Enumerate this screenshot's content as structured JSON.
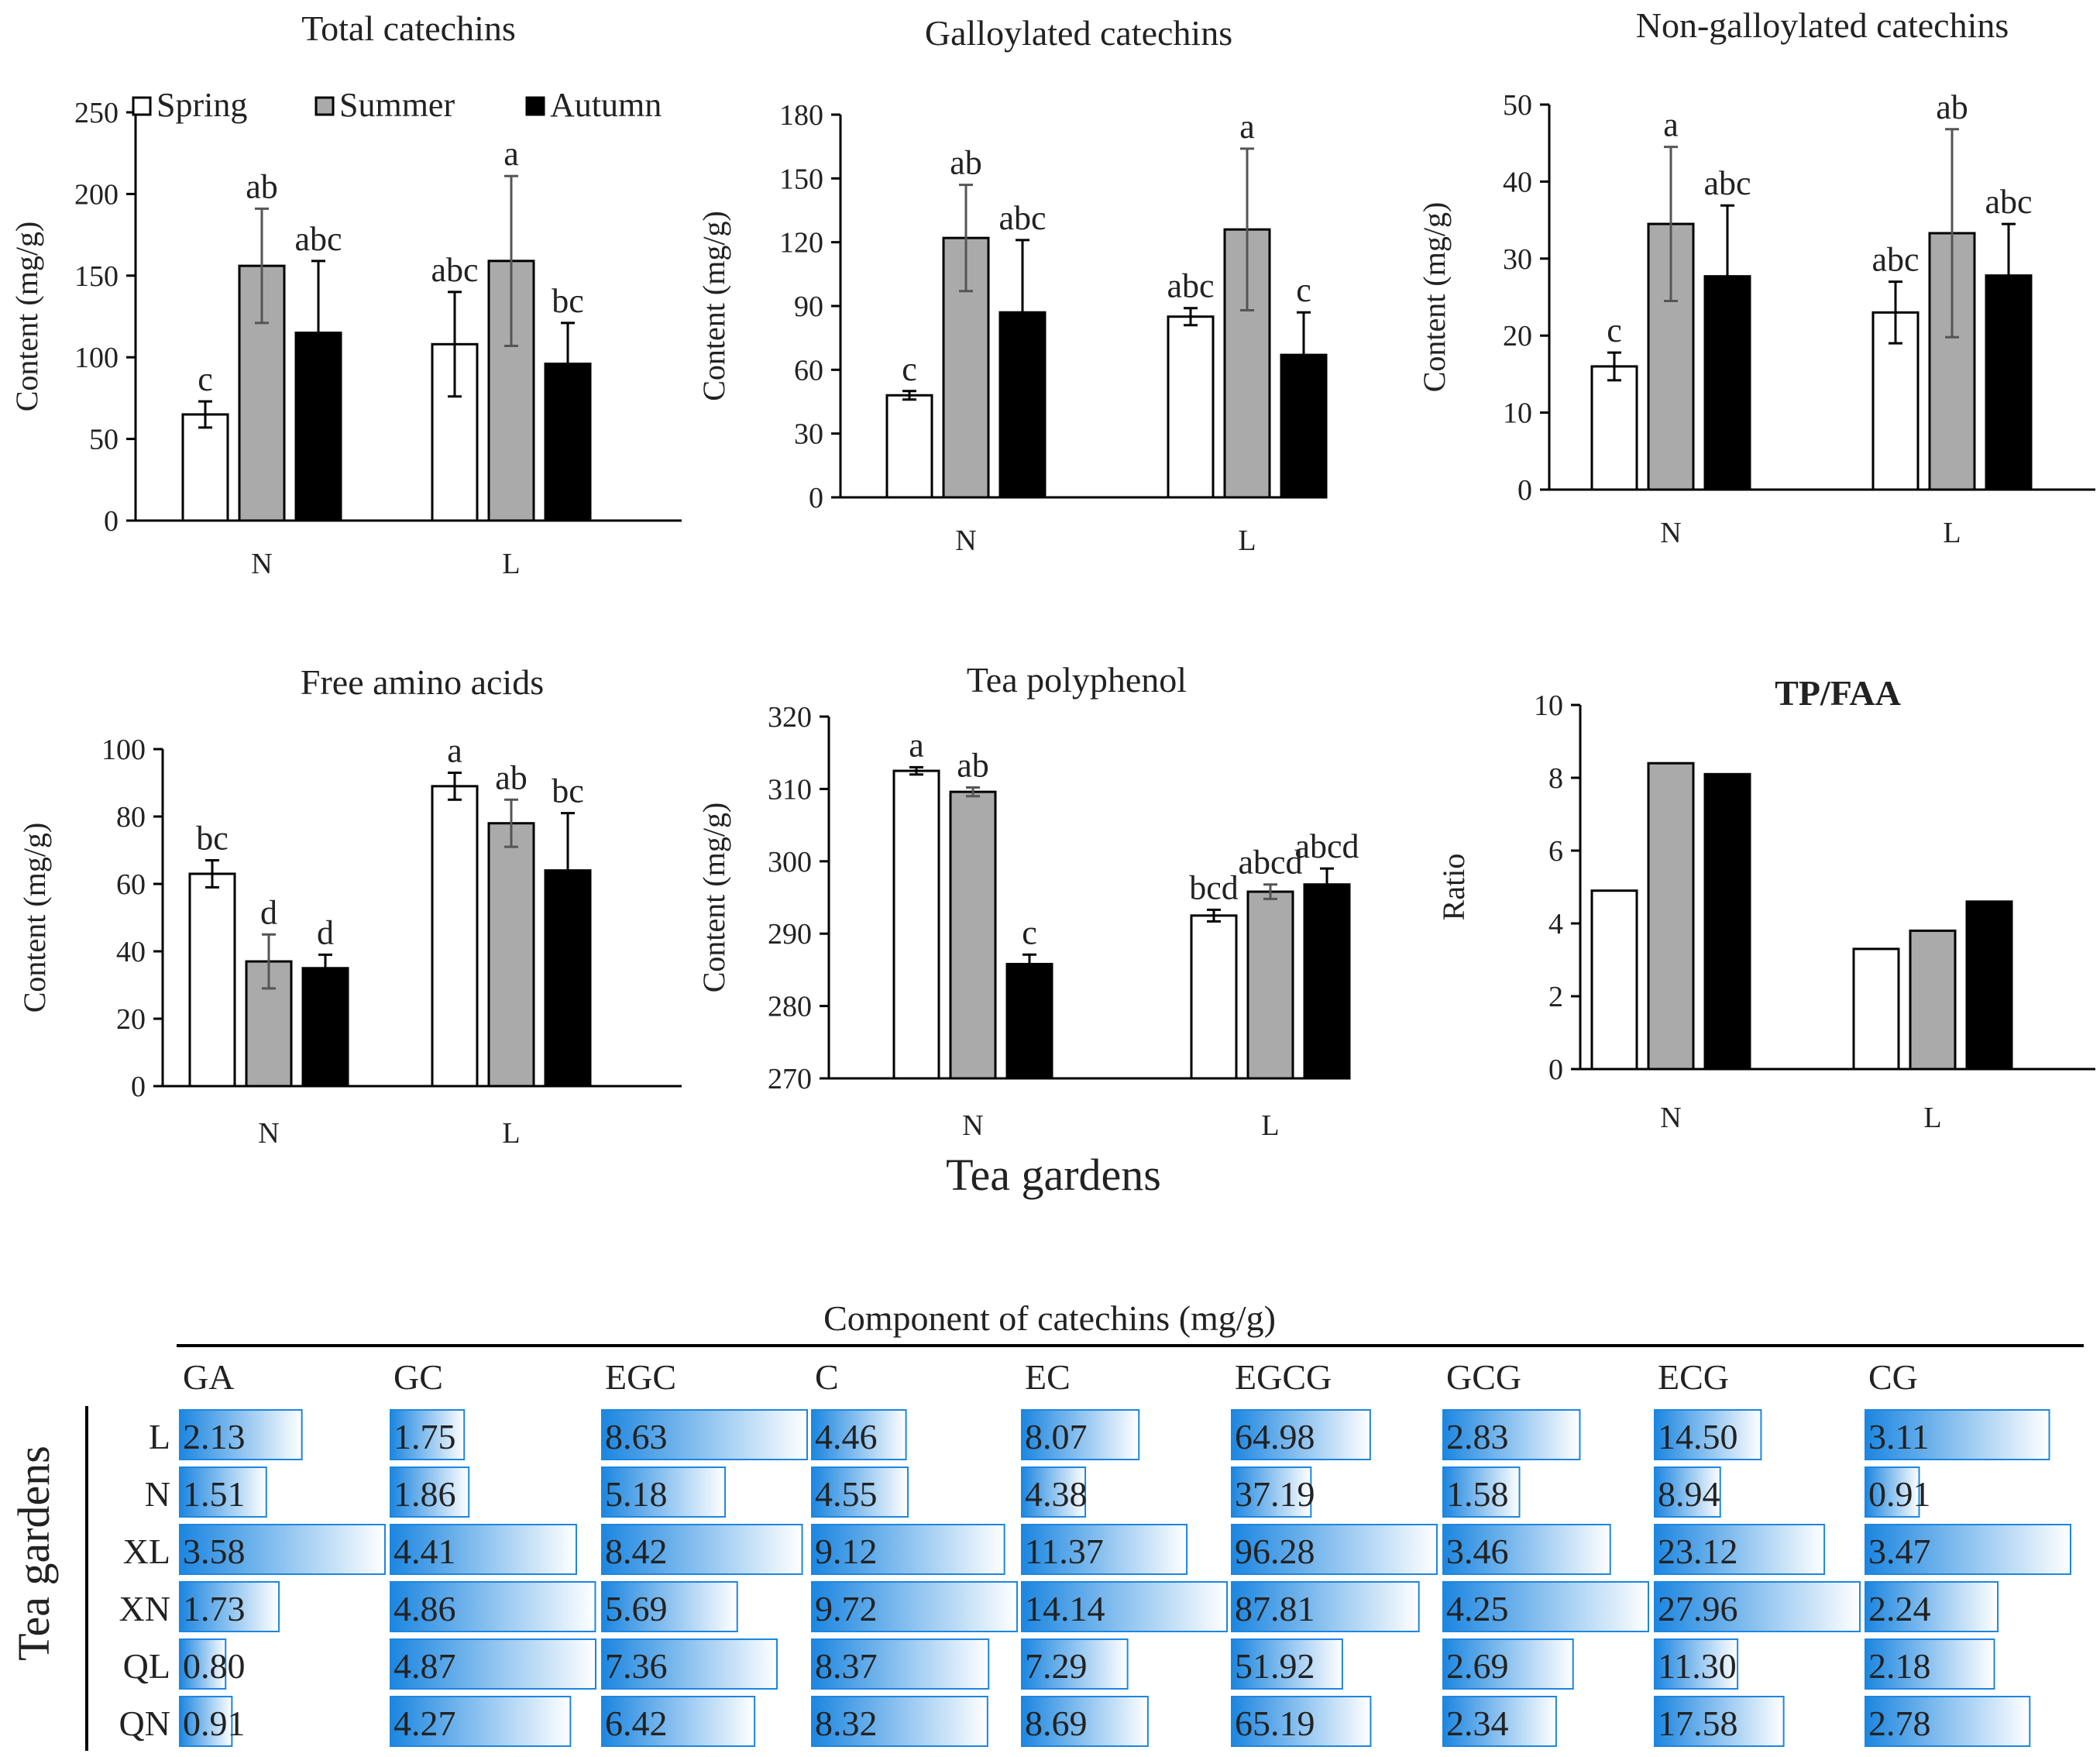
{
  "figure": {
    "shared_xlabel": "Tea gardens"
  },
  "chart_data": [
    {
      "type": "bar",
      "title": "Total catechins",
      "ylabel": "Content (mg/g)",
      "categories": [
        "N",
        "L"
      ],
      "ylim": [
        0,
        250
      ],
      "ticks": [
        0,
        50,
        100,
        150,
        200,
        250
      ],
      "series": [
        {
          "name": "Spring",
          "color": "#ffffff",
          "values": [
            65,
            108
          ],
          "errors": [
            8,
            32
          ],
          "labels": [
            "c",
            "abc"
          ]
        },
        {
          "name": "Summer",
          "color": "#aaaaaa",
          "values": [
            156,
            159
          ],
          "errors": [
            35,
            52
          ],
          "labels": [
            "ab",
            "a"
          ]
        },
        {
          "name": "Autumn",
          "color": "#000000",
          "values": [
            115,
            96
          ],
          "errors": [
            44,
            25
          ],
          "labels": [
            "abc",
            "bc"
          ]
        }
      ]
    },
    {
      "type": "bar",
      "title": "Galloylated catechins",
      "ylabel": "Content (mg/g)",
      "categories": [
        "N",
        "L"
      ],
      "ylim": [
        0,
        180
      ],
      "ticks": [
        0,
        30,
        60,
        90,
        120,
        150,
        180
      ],
      "series": [
        {
          "name": "Spring",
          "color": "#ffffff",
          "values": [
            48,
            85
          ],
          "errors": [
            2,
            4
          ],
          "labels": [
            "c",
            "abc"
          ]
        },
        {
          "name": "Summer",
          "color": "#aaaaaa",
          "values": [
            122,
            126
          ],
          "errors": [
            25,
            38
          ],
          "labels": [
            "ab",
            "a"
          ]
        },
        {
          "name": "Autumn",
          "color": "#000000",
          "values": [
            87,
            67
          ],
          "errors": [
            34,
            20
          ],
          "labels": [
            "abc",
            "c"
          ]
        }
      ]
    },
    {
      "type": "bar",
      "title": "Non-galloylated catechins",
      "ylabel": "Content (mg/g)",
      "categories": [
        "N",
        "L"
      ],
      "ylim": [
        0,
        50
      ],
      "ticks": [
        0,
        10,
        20,
        30,
        40,
        50
      ],
      "series": [
        {
          "name": "Spring",
          "color": "#ffffff",
          "values": [
            16,
            23
          ],
          "errors": [
            1.8,
            4
          ],
          "labels": [
            "c",
            "abc"
          ]
        },
        {
          "name": "Summer",
          "color": "#aaaaaa",
          "values": [
            34.5,
            33.3
          ],
          "errors": [
            10,
            13.5
          ],
          "labels": [
            "a",
            "ab"
          ]
        },
        {
          "name": "Autumn",
          "color": "#000000",
          "values": [
            27.7,
            27.8
          ],
          "errors": [
            9.2,
            6.7
          ],
          "labels": [
            "abc",
            "abc"
          ]
        }
      ]
    },
    {
      "type": "bar",
      "title": "Free amino acids",
      "ylabel": "Content (mg/g)",
      "categories": [
        "N",
        "L"
      ],
      "ylim": [
        0,
        100
      ],
      "ticks": [
        0,
        20,
        40,
        60,
        80,
        100
      ],
      "series": [
        {
          "name": "Spring",
          "color": "#ffffff",
          "values": [
            63,
            89
          ],
          "errors": [
            4,
            4
          ],
          "labels": [
            "bc",
            "a"
          ]
        },
        {
          "name": "Summer",
          "color": "#aaaaaa",
          "values": [
            37,
            78
          ],
          "errors": [
            8,
            7
          ],
          "labels": [
            "d",
            "ab"
          ]
        },
        {
          "name": "Autumn",
          "color": "#000000",
          "values": [
            35,
            64
          ],
          "errors": [
            4,
            17
          ],
          "labels": [
            "d",
            "bc"
          ]
        }
      ]
    },
    {
      "type": "bar",
      "title": "Tea polyphenol",
      "ylabel": "Content (mg/g)",
      "categories": [
        "N",
        "L"
      ],
      "ylim": [
        270,
        320
      ],
      "ticks": [
        270,
        280,
        290,
        300,
        310,
        320
      ],
      "series": [
        {
          "name": "Spring",
          "color": "#ffffff",
          "values": [
            312.5,
            292.5
          ],
          "errors": [
            0.5,
            0.8
          ],
          "labels": [
            "a",
            "bcd"
          ]
        },
        {
          "name": "Summer",
          "color": "#aaaaaa",
          "values": [
            309.6,
            295.8
          ],
          "errors": [
            0.6,
            1.0
          ],
          "labels": [
            "ab",
            "abcd"
          ]
        },
        {
          "name": "Autumn",
          "color": "#000000",
          "values": [
            285.8,
            296.8
          ],
          "errors": [
            1.3,
            2.2
          ],
          "labels": [
            "c",
            "abcd"
          ]
        }
      ]
    },
    {
      "type": "bar",
      "title": "TP/FAA",
      "ylabel": "Ratio",
      "categories": [
        "N",
        "L"
      ],
      "ylim": [
        0,
        10
      ],
      "ticks": [
        0,
        2,
        4,
        6,
        8,
        10
      ],
      "series": [
        {
          "name": "Spring",
          "color": "#ffffff",
          "values": [
            4.9,
            3.3
          ],
          "errors": [],
          "labels": []
        },
        {
          "name": "Summer",
          "color": "#aaaaaa",
          "values": [
            8.4,
            3.8
          ],
          "errors": [],
          "labels": []
        },
        {
          "name": "Autumn",
          "color": "#000000",
          "values": [
            8.1,
            4.6
          ],
          "errors": [],
          "labels": []
        }
      ]
    },
    {
      "type": "table",
      "title": "Component of catechins (mg/g)",
      "row_axis_label": "Tea gardens",
      "columns": [
        "GA",
        "GC",
        "EGC",
        "C",
        "EC",
        "EGCG",
        "GCG",
        "ECG",
        "CG"
      ],
      "rows": [
        "L",
        "N",
        "XL",
        "XN",
        "QL",
        "QN"
      ],
      "values": [
        [
          "2.13",
          "1.75",
          "8.63",
          "4.46",
          "8.07",
          "64.98",
          "2.83",
          "14.50",
          "3.11"
        ],
        [
          "1.51",
          "1.86",
          "5.18",
          "4.55",
          "4.38",
          "37.19",
          "1.58",
          "8.94",
          "0.91"
        ],
        [
          "3.58",
          "4.41",
          "8.42",
          "9.12",
          "11.37",
          "96.28",
          "3.46",
          "23.12",
          "3.47"
        ],
        [
          "1.73",
          "4.86",
          "5.69",
          "9.72",
          "14.14",
          "87.81",
          "4.25",
          "27.96",
          "2.24"
        ],
        [
          "0.80",
          "4.87",
          "7.36",
          "8.37",
          "7.29",
          "51.92",
          "2.69",
          "11.30",
          "2.18"
        ],
        [
          "0.91",
          "4.27",
          "6.42",
          "8.32",
          "8.69",
          "65.19",
          "2.34",
          "17.58",
          "2.78"
        ]
      ],
      "bar_color": "#1c86e0"
    }
  ]
}
